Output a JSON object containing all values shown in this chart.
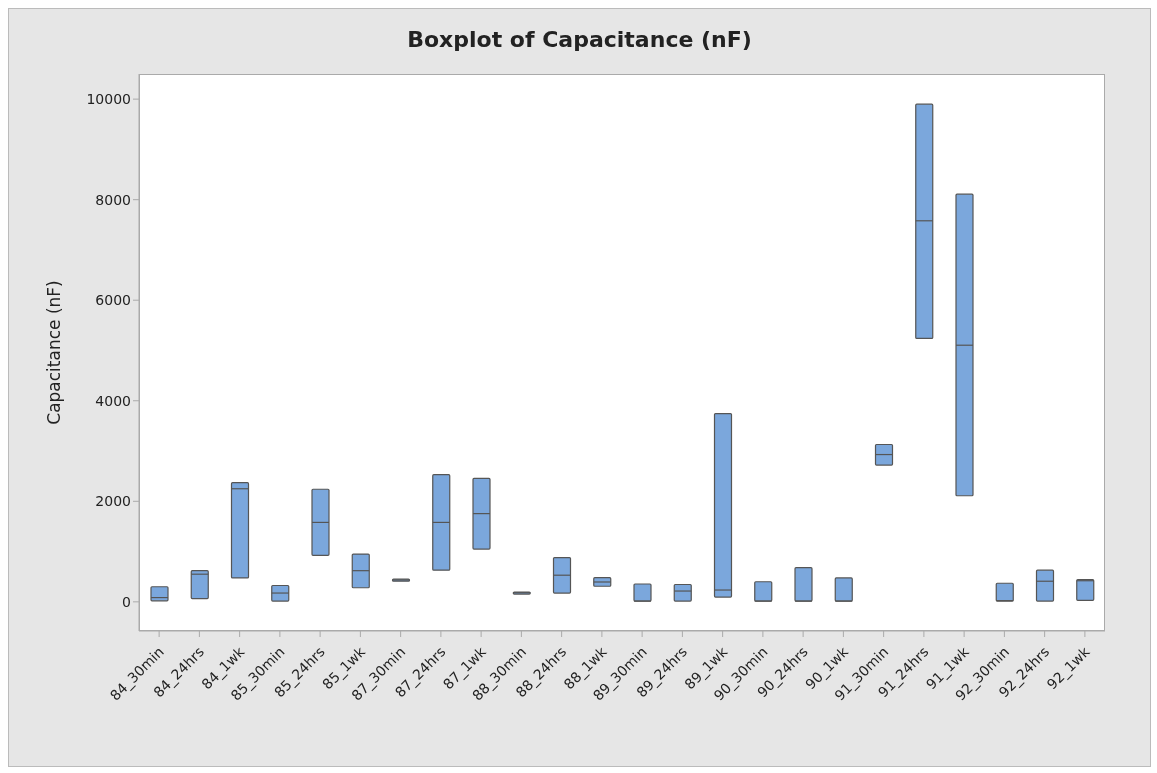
{
  "chart_data": {
    "type": "box",
    "title": "Boxplot of Capacitance (nF)",
    "ylabel": "Capacitance (nF)",
    "categories": [
      "84_30min",
      "84_24hrs",
      "84_1wk",
      "85_30min",
      "85_24hrs",
      "85_1wk",
      "87_30min",
      "87_24hrs",
      "87_1wk",
      "88_30min",
      "88_24hrs",
      "88_1wk",
      "89_30min",
      "89_24hrs",
      "89_1wk",
      "90_30min",
      "90_24hrs",
      "90_1wk",
      "91_30min",
      "91_24hrs",
      "91_1wk",
      "92_30min",
      "92_24hrs",
      "92_1wk"
    ],
    "color": "#7ba7dc",
    "boxes": [
      {
        "low": 20,
        "q1": 20,
        "median": 85,
        "q3": 300,
        "high": 300
      },
      {
        "low": 65,
        "q1": 65,
        "median": 550,
        "q3": 620,
        "high": 620
      },
      {
        "low": 475,
        "q1": 475,
        "median": 2250,
        "q3": 2370,
        "high": 2370
      },
      {
        "low": 15,
        "q1": 15,
        "median": 175,
        "q3": 325,
        "high": 325
      },
      {
        "low": 925,
        "q1": 925,
        "median": 1580,
        "q3": 2240,
        "high": 2240
      },
      {
        "low": 280,
        "q1": 280,
        "median": 620,
        "q3": 950,
        "high": 950
      },
      {
        "low": 420,
        "q1": 420,
        "median": 435,
        "q3": 450,
        "high": 450
      },
      {
        "low": 630,
        "q1": 630,
        "median": 1580,
        "q3": 2530,
        "high": 2530
      },
      {
        "low": 1050,
        "q1": 1050,
        "median": 1755,
        "q3": 2455,
        "high": 2455
      },
      {
        "low": 165,
        "q1": 165,
        "median": 180,
        "q3": 195,
        "high": 195
      },
      {
        "low": 175,
        "q1": 175,
        "median": 530,
        "q3": 880,
        "high": 880
      },
      {
        "low": 310,
        "q1": 310,
        "median": 395,
        "q3": 480,
        "high": 480
      },
      {
        "low": 15,
        "q1": 15,
        "median": 15,
        "q3": 355,
        "high": 355
      },
      {
        "low": 15,
        "q1": 15,
        "median": 215,
        "q3": 345,
        "high": 345
      },
      {
        "low": 95,
        "q1": 95,
        "median": 235,
        "q3": 3745,
        "high": 3745
      },
      {
        "low": 15,
        "q1": 15,
        "median": 15,
        "q3": 400,
        "high": 400
      },
      {
        "low": 15,
        "q1": 15,
        "median": 15,
        "q3": 680,
        "high": 680
      },
      {
        "low": 15,
        "q1": 15,
        "median": 15,
        "q3": 475,
        "high": 475
      },
      {
        "low": 2720,
        "q1": 2720,
        "median": 2930,
        "q3": 3130,
        "high": 3130
      },
      {
        "low": 5240,
        "q1": 5240,
        "median": 7580,
        "q3": 9900,
        "high": 9900
      },
      {
        "low": 2110,
        "q1": 2110,
        "median": 5105,
        "q3": 8110,
        "high": 8110
      },
      {
        "low": 15,
        "q1": 15,
        "median": 25,
        "q3": 370,
        "high": 370
      },
      {
        "low": 15,
        "q1": 15,
        "median": 410,
        "q3": 630,
        "high": 630
      },
      {
        "low": 30,
        "q1": 30,
        "median": 420,
        "q3": 440,
        "high": 440
      }
    ],
    "ylim": [
      -580,
      10500
    ],
    "yticks": [
      0,
      2000,
      4000,
      6000,
      8000,
      10000
    ]
  }
}
